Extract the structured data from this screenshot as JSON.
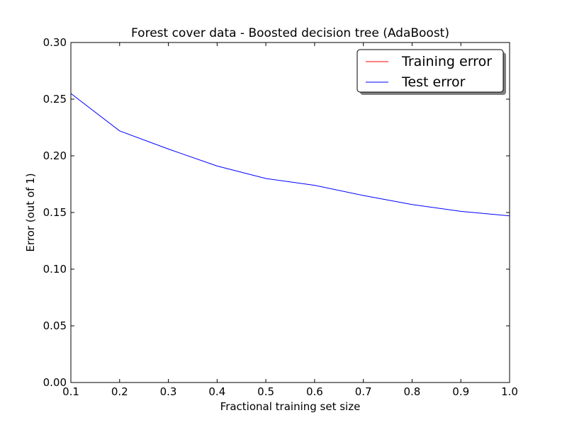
{
  "chart_data": {
    "type": "line",
    "title": "Forest cover data - Boosted decision tree (AdaBoost)",
    "xlabel": "Fractional training set size",
    "ylabel": "Error (out of 1)",
    "xlim": [
      0.1,
      1.0
    ],
    "ylim": [
      0.0,
      0.3
    ],
    "x_ticks": [
      0.1,
      0.2,
      0.3,
      0.4,
      0.5,
      0.6,
      0.7,
      0.8,
      0.9,
      1.0
    ],
    "x_tick_labels": [
      "0.1",
      "0.2",
      "0.3",
      "0.4",
      "0.5",
      "0.6",
      "0.7",
      "0.8",
      "0.9",
      "1.0"
    ],
    "y_ticks": [
      0.0,
      0.05,
      0.1,
      0.15,
      0.2,
      0.25,
      0.3
    ],
    "y_tick_labels": [
      "0.00",
      "0.05",
      "0.10",
      "0.15",
      "0.20",
      "0.25",
      "0.30"
    ],
    "grid": false,
    "legend_placement": "top-right",
    "x": [
      0.1,
      0.2,
      0.3,
      0.4,
      0.5,
      0.6,
      0.7,
      0.8,
      0.9,
      1.0
    ],
    "series": [
      {
        "name": "Training error",
        "color": "#ff0000",
        "values": [
          0.0,
          0.0,
          0.0,
          0.0,
          0.0,
          0.0,
          0.0,
          0.0,
          0.0,
          0.0
        ]
      },
      {
        "name": "Test error",
        "color": "#0000ff",
        "values": [
          0.255,
          0.222,
          0.206,
          0.191,
          0.18,
          0.174,
          0.165,
          0.157,
          0.151,
          0.147
        ]
      }
    ]
  }
}
